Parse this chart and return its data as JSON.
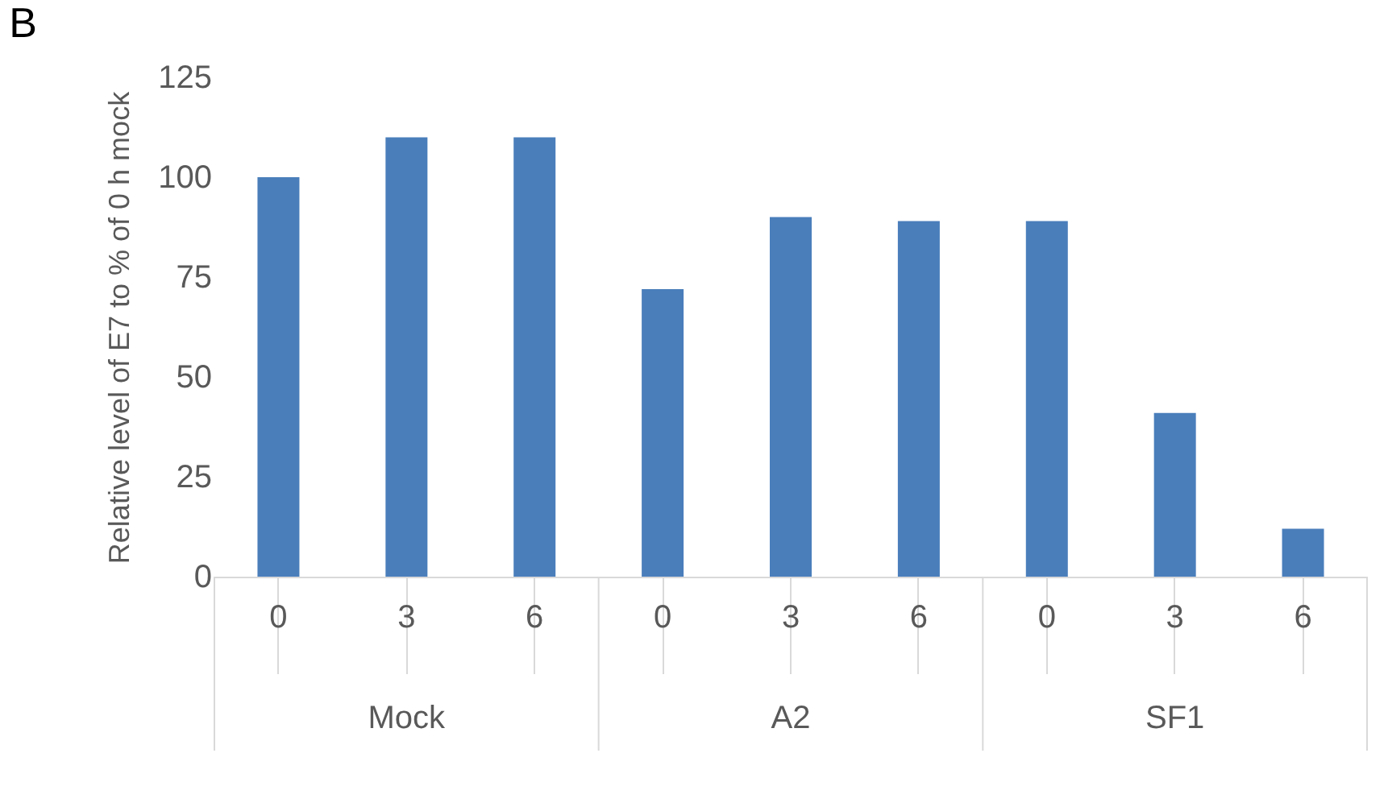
{
  "chart_data": {
    "type": "bar",
    "title": "B",
    "ylabel": "Relative level of E7 to % of 0 h mock",
    "categories": [
      "0",
      "3",
      "6",
      "0",
      "3",
      "6",
      "0",
      "3",
      "6"
    ],
    "values": [
      100,
      110,
      110,
      72,
      90,
      89,
      89,
      41,
      12
    ],
    "color": "#4a7ebb",
    "ylim": [
      0,
      125
    ],
    "yticks": [
      0,
      25,
      50,
      75,
      100,
      125
    ],
    "grid": false,
    "annotations": [
      "Mock",
      "A2",
      "SF1"
    ]
  }
}
